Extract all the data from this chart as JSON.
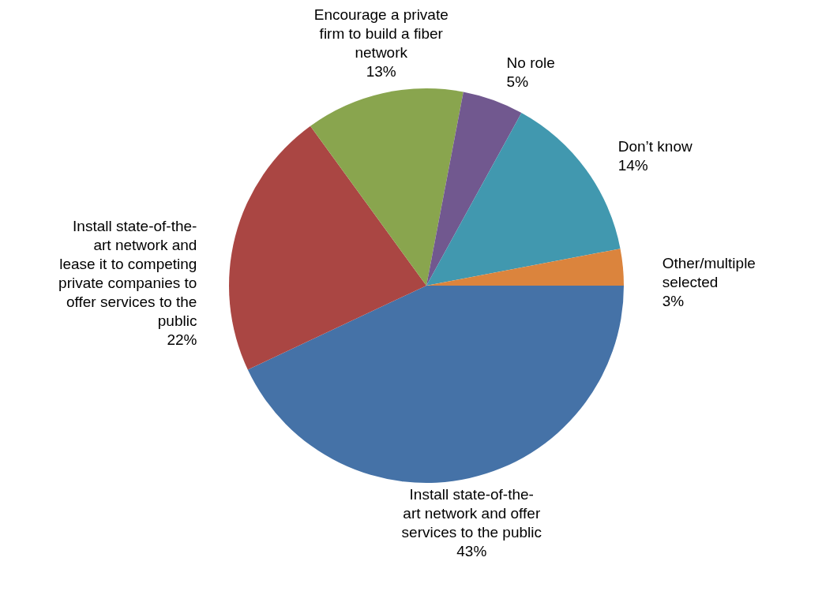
{
  "chart_data": {
    "type": "pie",
    "categories": [
      "Install state-of-the-\nart network and offer\nservices to the public",
      "Install state-of-the-\nart network and\nlease it to competing\nprivate companies to\noffer services to the\npublic",
      "Encourage a private\nfirm to build a fiber\nnetwork",
      "No role",
      "Don’t know",
      "Other/multiple\nselected"
    ],
    "values": [
      43,
      22,
      13,
      5,
      14,
      3
    ],
    "value_labels": [
      "43%",
      "22%",
      "13%",
      "5%",
      "14%",
      "3%"
    ],
    "colors": [
      "#4572a7",
      "#aa4643",
      "#89a54e",
      "#71588f",
      "#4198af",
      "#db843d"
    ]
  }
}
